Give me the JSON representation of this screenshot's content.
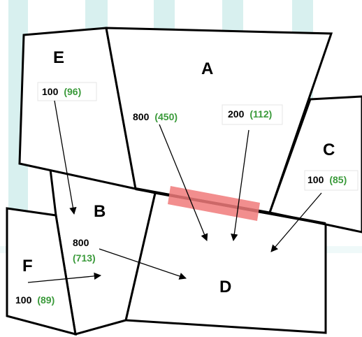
{
  "colors": {
    "background_stripes": "#d8f0ef",
    "highlight_bar": "#f07a7a",
    "green_text": "#3a9a3a",
    "outline": "#000000"
  },
  "regions": {
    "A": "A",
    "B": "B",
    "C": "C",
    "D": "D",
    "E": "E",
    "F": "F"
  },
  "flows": [
    {
      "id": "e",
      "value": "100",
      "adjusted": "(96)"
    },
    {
      "id": "a-left",
      "value": "800",
      "adjusted": "(450)"
    },
    {
      "id": "a-right",
      "value": "200",
      "adjusted": "(112)"
    },
    {
      "id": "c",
      "value": "100",
      "adjusted": "(85)"
    },
    {
      "id": "b",
      "value": "800",
      "adjusted": "(713)"
    },
    {
      "id": "f",
      "value": "100",
      "adjusted": "(89)"
    }
  ]
}
